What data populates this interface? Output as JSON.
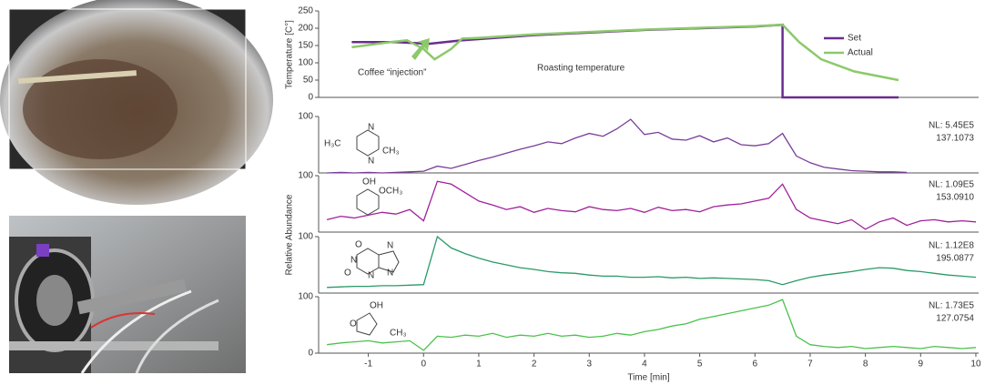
{
  "chart_data": [
    {
      "type": "line",
      "ylabel": "Temperature [C°]",
      "ylim": [
        0,
        250
      ],
      "yticks": [
        0,
        50,
        100,
        150,
        200,
        250
      ],
      "xlim": [
        -1.9,
        10.05
      ],
      "legend": "right",
      "annotations": [
        "Coffee “injection”",
        "Roasting temperature"
      ],
      "series": [
        {
          "name": "Set",
          "color": "#6a2c91",
          "x": [
            -1.3,
            -0.5,
            0.1,
            0.7,
            2,
            4,
            6,
            6.5,
            6.5,
            8.6
          ],
          "values": [
            160,
            160,
            155,
            165,
            180,
            195,
            205,
            210,
            0,
            0
          ]
        },
        {
          "name": "Actual",
          "color": "#8cc96a",
          "x": [
            -1.3,
            -0.6,
            -0.3,
            0,
            0.2,
            0.5,
            0.7,
            1,
            2,
            4,
            6,
            6.5,
            6.8,
            7.2,
            7.8,
            8.6
          ],
          "values": [
            145,
            160,
            165,
            140,
            110,
            140,
            170,
            172,
            182,
            196,
            206,
            210,
            160,
            110,
            75,
            50
          ]
        }
      ]
    },
    {
      "type": "line",
      "ylabel": "Relative Abundance",
      "xlabel": "Time [min]",
      "xlim": [
        -1.9,
        10.05
      ],
      "xticks": [
        -1,
        0,
        1,
        2,
        3,
        4,
        5,
        6,
        7,
        8,
        9,
        10
      ],
      "ylim": [
        0,
        100
      ],
      "x": [
        -1.75,
        -1.5,
        -1.25,
        -1,
        -0.75,
        -0.5,
        -0.25,
        0,
        0.25,
        0.5,
        0.75,
        1,
        1.25,
        1.5,
        1.75,
        2,
        2.25,
        2.5,
        2.75,
        3,
        3.25,
        3.5,
        3.75,
        4,
        4.25,
        4.5,
        4.75,
        5,
        5.25,
        5.5,
        5.75,
        6,
        6.25,
        6.5,
        6.75,
        7,
        7.25,
        7.5,
        7.75,
        8,
        8.25,
        8.5,
        8.75,
        9,
        9.25,
        9.5,
        9.75,
        10
      ],
      "panels": [
        {
          "color": "#7a3d9a",
          "nl": "NL: 5.45E5",
          "mass": "137.1073",
          "yticks": [
            100
          ],
          "structure_labels": [
            "H₃C",
            "N",
            "N",
            "CH₃"
          ],
          "values": [
            0,
            1,
            0,
            1,
            0,
            1,
            2,
            3,
            12,
            8,
            15,
            22,
            28,
            35,
            42,
            48,
            55,
            52,
            62,
            70,
            65,
            78,
            95,
            68,
            72,
            60,
            58,
            66,
            55,
            62,
            50,
            48,
            52,
            70,
            30,
            18,
            10,
            7,
            4,
            3,
            2,
            2,
            1,
            null,
            null,
            null,
            null,
            null
          ]
        },
        {
          "color": "#a0219a",
          "nl": "NL: 1.09E5",
          "mass": "153.0910",
          "yticks": [
            100
          ],
          "structure_labels": [
            "OH",
            "OCH₃"
          ],
          "values": [
            22,
            28,
            25,
            30,
            35,
            32,
            40,
            20,
            90,
            85,
            70,
            55,
            48,
            40,
            45,
            35,
            42,
            38,
            36,
            45,
            40,
            38,
            42,
            35,
            44,
            38,
            40,
            36,
            45,
            48,
            50,
            55,
            60,
            85,
            40,
            25,
            20,
            15,
            22,
            5,
            18,
            25,
            12,
            20,
            22,
            18,
            20,
            18
          ]
        },
        {
          "color": "#2a9a68",
          "nl": "NL: 1.12E8",
          "mass": "195.0877",
          "yticks": [
            100
          ],
          "structure_labels": [
            "O",
            "N",
            "N",
            "N",
            "N",
            "O"
          ],
          "values": [
            10,
            11,
            12,
            12,
            13,
            13,
            14,
            15,
            100,
            80,
            70,
            62,
            55,
            50,
            45,
            42,
            38,
            36,
            35,
            32,
            30,
            30,
            28,
            28,
            29,
            27,
            28,
            26,
            27,
            26,
            25,
            24,
            22,
            15,
            22,
            28,
            32,
            35,
            38,
            42,
            45,
            44,
            40,
            38,
            35,
            32,
            30,
            28
          ]
        },
        {
          "color": "#4cc24c",
          "nl": "NL: 1.73E5",
          "mass": "127.0754",
          "yticks": [
            0,
            100
          ],
          "structure_labels": [
            "OH",
            "O",
            "CH₃"
          ],
          "values": [
            15,
            18,
            20,
            22,
            18,
            20,
            22,
            5,
            30,
            28,
            32,
            30,
            35,
            28,
            32,
            30,
            35,
            30,
            32,
            28,
            30,
            35,
            32,
            38,
            42,
            48,
            52,
            60,
            65,
            70,
            75,
            80,
            85,
            95,
            30,
            15,
            12,
            10,
            12,
            8,
            10,
            12,
            10,
            8,
            12,
            10,
            8,
            10
          ]
        }
      ]
    }
  ]
}
